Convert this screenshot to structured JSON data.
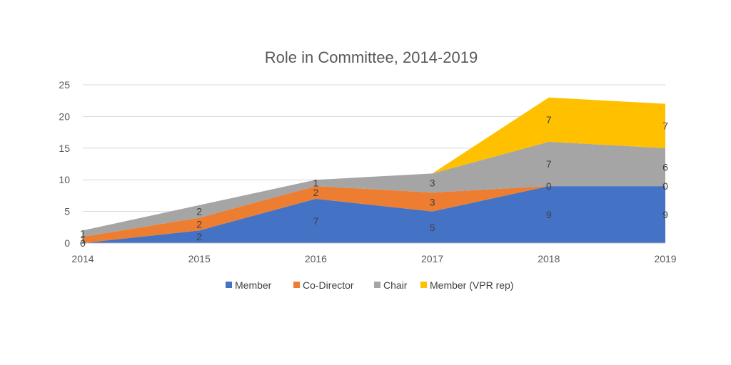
{
  "chart_data": {
    "type": "area",
    "stacked": true,
    "title": "Role in Committee, 2014-2019",
    "xlabel": "",
    "ylabel": "",
    "x": [
      "2014",
      "2015",
      "2016",
      "2017",
      "2018",
      "2019"
    ],
    "ylim": [
      0,
      25
    ],
    "yticks": [
      "0",
      "5",
      "10",
      "15",
      "20",
      "25"
    ],
    "grid": true,
    "legend_position": "bottom",
    "series": [
      {
        "name": "Member",
        "values": [
          0,
          2,
          7,
          5,
          9,
          9
        ],
        "color": "#4472c4"
      },
      {
        "name": "Co-Director",
        "values": [
          1,
          2,
          2,
          3,
          0,
          0
        ],
        "color": "#ed7d31"
      },
      {
        "name": "Chair",
        "values": [
          1,
          2,
          1,
          3,
          7,
          6
        ],
        "color": "#a5a5a5"
      },
      {
        "name": "Member (VPR rep)",
        "values": [
          0,
          0,
          0,
          0,
          7,
          7
        ],
        "color": "#ffc000"
      }
    ]
  }
}
